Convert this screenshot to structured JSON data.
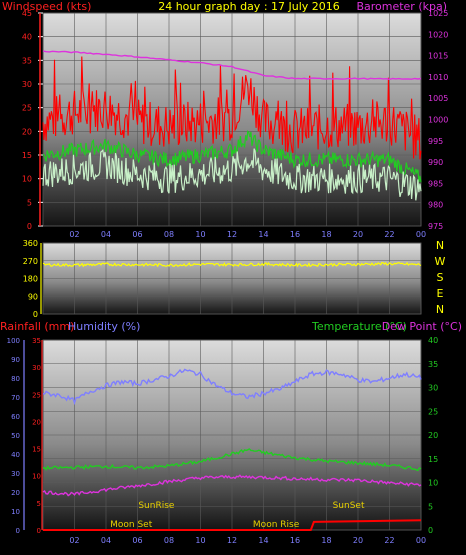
{
  "chart_data": [
    {
      "type": "line",
      "title": "24 hour graph day : 17 July 2016",
      "left_axis_label": "Windspeed (kts)",
      "right_axis_label": "Barometer (kpa)",
      "x_tick_labels": [
        "02",
        "04",
        "06",
        "08",
        "10",
        "12",
        "14",
        "16",
        "18",
        "20",
        "22",
        "00"
      ],
      "y_left_ticks": [
        "0",
        "5",
        "10",
        "15",
        "20",
        "25",
        "30",
        "35",
        "40",
        "45"
      ],
      "y_left_range": [
        0,
        45
      ],
      "y_right_ticks": [
        "975",
        "980",
        "985",
        "990",
        "995",
        "1000",
        "1005",
        "1010",
        "1015",
        "1020",
        "1025"
      ],
      "y_right_range": [
        975,
        1025
      ],
      "grid": true,
      "colors": {
        "gust": "#ff0000",
        "average": "#22cc22",
        "speed": "#c8f0c8",
        "barometer": "#dd33dd"
      },
      "series": [
        {
          "name": "gust",
          "x": [
            0,
            2,
            4,
            6,
            8,
            10,
            12,
            13,
            14,
            16,
            18,
            20,
            22,
            24
          ],
          "values": [
            22,
            24,
            25,
            22,
            21,
            22,
            23,
            30,
            22,
            20,
            21,
            21,
            22,
            18
          ]
        },
        {
          "name": "average",
          "x": [
            0,
            2,
            4,
            6,
            8,
            10,
            12,
            13,
            14,
            16,
            18,
            20,
            22,
            24
          ],
          "values": [
            15,
            16,
            17,
            15,
            14,
            15,
            16,
            19,
            16,
            14,
            14,
            14,
            14,
            10
          ]
        },
        {
          "name": "speed",
          "x": [
            0,
            2,
            4,
            6,
            8,
            10,
            12,
            13,
            14,
            16,
            18,
            20,
            22,
            24
          ],
          "values": [
            11,
            12,
            13,
            11,
            10,
            11,
            12,
            14,
            12,
            10,
            10,
            10,
            10,
            8
          ]
        },
        {
          "name": "barometer",
          "x": [
            0,
            2,
            4,
            6,
            8,
            10,
            12,
            14,
            16,
            18,
            20,
            22,
            24
          ],
          "values": [
            1016,
            1015.8,
            1015.3,
            1014.7,
            1014,
            1013.3,
            1012.4,
            1010.3,
            1009.6,
            1009.6,
            1009.6,
            1009.5,
            1009.6
          ]
        }
      ]
    },
    {
      "type": "line",
      "title": "",
      "y_left_ticks": [
        "0",
        "90",
        "180",
        "270",
        "360"
      ],
      "y_left_range": [
        0,
        360
      ],
      "compass_labels": [
        "N",
        "W",
        "S",
        "E",
        "N"
      ],
      "colors": {
        "direction": "#ffff00"
      },
      "series": [
        {
          "name": "direction",
          "x": [
            0,
            2,
            4,
            6,
            8,
            10,
            12,
            14,
            16,
            18,
            20,
            22,
            24
          ],
          "values": [
            250,
            248,
            252,
            250,
            248,
            252,
            250,
            253,
            248,
            250,
            252,
            255,
            250
          ]
        }
      ]
    },
    {
      "type": "line",
      "title": "",
      "left_axis_label_1": "Rainfall (mm)",
      "left_axis_label_2": "Humidity (%)",
      "right_axis_label_1": "Temperature (°C)",
      "right_axis_label_2": "Dew Point (°C)",
      "x_tick_labels": [
        "02",
        "04",
        "06",
        "08",
        "10",
        "12",
        "14",
        "16",
        "18",
        "20",
        "22",
        "00"
      ],
      "rain_ticks": [
        "0",
        "5",
        "10",
        "15",
        "20",
        "25",
        "30",
        "35"
      ],
      "rain_range": [
        0,
        35
      ],
      "humidity_ticks": [
        "0",
        "10",
        "20",
        "30",
        "40",
        "50",
        "60",
        "70",
        "80",
        "90",
        "100"
      ],
      "humidity_range": [
        0,
        100
      ],
      "temp_ticks": [
        "0",
        "5",
        "10",
        "15",
        "20",
        "25",
        "30",
        "35",
        "40"
      ],
      "temp_range": [
        0,
        40
      ],
      "annotations": [
        {
          "text": "SunRise",
          "x": 7.2
        },
        {
          "text": "Moon Set",
          "x": 5.6
        },
        {
          "text": "Moon Rise",
          "x": 14.8
        },
        {
          "text": "SunSet",
          "x": 19.4
        }
      ],
      "colors": {
        "humidity": "#7f7fff",
        "temperature": "#22cc22",
        "dew_point": "#dd33dd",
        "rainfall": "#ff0000"
      },
      "series": [
        {
          "name": "humidity",
          "x": [
            0,
            1,
            2,
            3,
            4,
            5,
            6,
            7,
            8,
            9,
            10,
            11,
            12,
            13,
            14,
            15,
            16,
            17,
            18,
            19,
            20,
            21,
            22,
            23,
            24
          ],
          "values": [
            72,
            71,
            68,
            73,
            76,
            78,
            77,
            79,
            81,
            84,
            82,
            76,
            72,
            70,
            72,
            74,
            78,
            82,
            83,
            82,
            79,
            78,
            80,
            82,
            80
          ]
        },
        {
          "name": "temperature",
          "x": [
            0,
            2,
            4,
            6,
            8,
            10,
            12,
            13,
            14,
            16,
            18,
            20,
            22,
            24
          ],
          "values": [
            13,
            13.2,
            13.4,
            13.1,
            13.5,
            14.4,
            16,
            16.9,
            16.3,
            15.2,
            14.5,
            14.1,
            13.6,
            12.8
          ]
        },
        {
          "name": "dew_point",
          "x": [
            0,
            2,
            4,
            6,
            8,
            10,
            12,
            14,
            16,
            18,
            20,
            22,
            24
          ],
          "values": [
            8,
            7.5,
            8.5,
            9.3,
            10.2,
            11,
            11.2,
            11.1,
            10.8,
            10.6,
            10.5,
            9.9,
            9.5
          ]
        },
        {
          "name": "rainfall",
          "x": [
            0,
            17,
            17.2,
            24
          ],
          "values": [
            0,
            0,
            1.5,
            1.8
          ]
        }
      ]
    }
  ]
}
